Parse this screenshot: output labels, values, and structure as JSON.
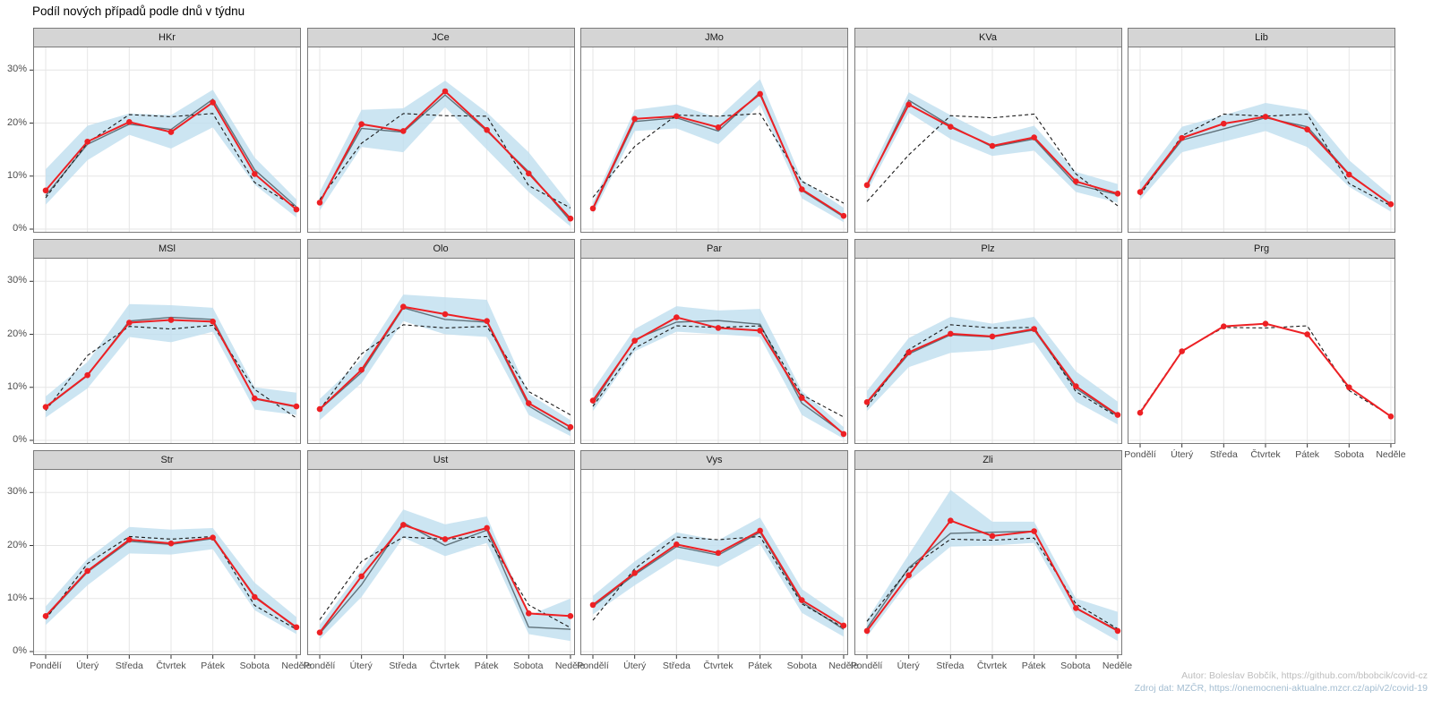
{
  "title": "Podíl nových případů podle dnů v týdnu",
  "footer": {
    "author": "Autor: Boleslav Bobčík, https://github.com/bbobcik/covid-cz",
    "source": "Zdroj dat: MZČR, https://onemocneni-aktualne.mzcr.cz/api/v2/covid-19"
  },
  "colors": {
    "red": "#ed2024",
    "ribbon": "#bfdfef",
    "mean_line": "#60727b",
    "dashed": "#1a1a1a",
    "grid": "#e6e6e6",
    "tick": "#333333",
    "axis_text": "#4d4d4d"
  },
  "chart_data": {
    "type": "line",
    "title": "Podíl nových případů podle dnů v týdnu",
    "categories": [
      "Pondělí",
      "Úterý",
      "Středa",
      "Čtvrtek",
      "Pátek",
      "Sobota",
      "Neděle"
    ],
    "ylabel": "",
    "xlabel": "",
    "ylim": [
      0,
      33
    ],
    "y_ticks_percent": [
      0,
      10,
      20,
      30
    ],
    "y_tick_labels": [
      "0%",
      "10%",
      "20%",
      "30%"
    ],
    "grid": true,
    "legend": "none",
    "series_description": {
      "red": "aktuální podíl (červená linie s body)",
      "dashed": "referenční podíl (černá čárkovaná)",
      "mean": "očekávaný podíl (šedá linie)",
      "ribbon_low_high": "pás nejistoty (světle modrý)"
    },
    "panels": [
      {
        "name": "HKr",
        "red": [
          7.3,
          16.5,
          20.2,
          18.3,
          23.9,
          10.4,
          3.7
        ],
        "mean": [
          6.3,
          16.0,
          19.8,
          18.8,
          24.5,
          11.2,
          4.2
        ],
        "dashed": [
          5.9,
          16.3,
          21.6,
          21.2,
          21.8,
          8.8,
          4.1
        ],
        "ribbon_low": [
          4.6,
          13.0,
          17.8,
          15.2,
          19.2,
          8.4,
          2.2
        ],
        "ribbon_high": [
          11.3,
          19.5,
          21.8,
          21.5,
          26.3,
          13.5,
          5.6
        ]
      },
      {
        "name": "JCe",
        "red": [
          5.0,
          19.8,
          18.5,
          26.0,
          18.7,
          10.5,
          2.0
        ],
        "mean": [
          5.2,
          19.0,
          18.3,
          25.3,
          18.5,
          10.8,
          1.5
        ],
        "dashed": [
          5.6,
          16.2,
          21.8,
          21.4,
          21.3,
          8.2,
          4.0
        ],
        "ribbon_low": [
          3.5,
          15.5,
          14.5,
          23.0,
          15.0,
          7.0,
          0.5
        ],
        "ribbon_high": [
          7.0,
          22.5,
          22.8,
          28.0,
          22.0,
          14.5,
          4.5
        ]
      },
      {
        "name": "JMo",
        "red": [
          3.9,
          20.8,
          21.3,
          19.2,
          25.5,
          7.5,
          2.5
        ],
        "mean": [
          3.7,
          20.3,
          21.0,
          18.5,
          25.8,
          7.3,
          2.3
        ],
        "dashed": [
          6.0,
          15.6,
          21.5,
          21.3,
          21.8,
          9.0,
          4.9
        ],
        "ribbon_low": [
          2.8,
          18.5,
          19.0,
          16.0,
          23.5,
          5.8,
          1.3
        ],
        "ribbon_high": [
          5.0,
          22.5,
          23.5,
          21.0,
          28.3,
          9.3,
          4.0
        ]
      },
      {
        "name": "KVa",
        "red": [
          8.3,
          23.5,
          19.3,
          15.7,
          17.3,
          9.0,
          6.7
        ],
        "mean": [
          8.0,
          24.3,
          19.5,
          15.5,
          17.0,
          8.4,
          6.5
        ],
        "dashed": [
          5.2,
          14.0,
          21.4,
          21.0,
          21.7,
          10.4,
          4.4
        ],
        "ribbon_low": [
          7.0,
          22.0,
          17.0,
          13.8,
          14.8,
          7.0,
          5.0
        ],
        "ribbon_high": [
          9.5,
          25.8,
          21.5,
          17.5,
          19.5,
          10.8,
          8.5
        ]
      },
      {
        "name": "Lib",
        "red": [
          7.0,
          17.2,
          19.9,
          21.2,
          18.8,
          10.3,
          4.7
        ],
        "mean": [
          6.8,
          16.8,
          18.9,
          21.0,
          19.3,
          10.4,
          4.6
        ],
        "dashed": [
          6.4,
          17.6,
          21.7,
          21.3,
          21.7,
          8.6,
          4.4
        ],
        "ribbon_low": [
          5.5,
          14.5,
          16.5,
          18.5,
          15.5,
          8.0,
          3.3
        ],
        "ribbon_high": [
          8.8,
          19.3,
          21.5,
          23.8,
          22.5,
          13.0,
          6.3
        ]
      },
      {
        "name": "MSl",
        "red": [
          6.3,
          12.3,
          22.2,
          22.7,
          22.4,
          7.9,
          6.4
        ],
        "mean": [
          6.2,
          12.2,
          22.5,
          23.2,
          22.8,
          7.8,
          6.3
        ],
        "dashed": [
          5.6,
          16.0,
          21.5,
          21.0,
          21.7,
          9.6,
          4.2
        ],
        "ribbon_low": [
          4.3,
          9.8,
          19.5,
          18.5,
          20.5,
          5.8,
          4.8
        ],
        "ribbon_high": [
          8.3,
          14.8,
          25.7,
          25.5,
          25.0,
          10.0,
          9.0
        ]
      },
      {
        "name": "Olo",
        "red": [
          5.9,
          13.3,
          25.2,
          23.8,
          22.5,
          7.0,
          2.5
        ],
        "mean": [
          5.8,
          12.8,
          25.0,
          22.8,
          22.3,
          6.5,
          1.8
        ],
        "dashed": [
          5.8,
          16.3,
          21.8,
          21.2,
          21.5,
          9.2,
          4.8
        ],
        "ribbon_low": [
          3.8,
          10.8,
          22.5,
          20.0,
          19.5,
          4.8,
          0.8
        ],
        "ribbon_high": [
          7.8,
          15.3,
          27.5,
          27.0,
          26.5,
          8.8,
          3.8
        ]
      },
      {
        "name": "Par",
        "red": [
          7.5,
          18.8,
          23.2,
          21.2,
          20.7,
          8.0,
          1.2
        ],
        "mean": [
          6.9,
          19.0,
          22.3,
          22.6,
          21.9,
          7.0,
          1.3
        ],
        "dashed": [
          6.4,
          17.4,
          21.6,
          21.3,
          21.6,
          8.6,
          4.4
        ],
        "ribbon_low": [
          5.5,
          16.8,
          20.5,
          20.0,
          19.5,
          4.8,
          0.3
        ],
        "ribbon_high": [
          9.5,
          21.0,
          25.3,
          24.5,
          24.8,
          9.3,
          2.5
        ]
      },
      {
        "name": "Plz",
        "red": [
          7.2,
          16.6,
          20.1,
          19.6,
          21.0,
          10.2,
          4.8
        ],
        "mean": [
          7.0,
          16.3,
          19.9,
          19.5,
          20.8,
          9.8,
          4.6
        ],
        "dashed": [
          6.3,
          17.1,
          21.8,
          21.2,
          21.3,
          9.2,
          4.4
        ],
        "ribbon_low": [
          5.5,
          13.8,
          16.5,
          17.0,
          18.5,
          7.3,
          3.0
        ],
        "ribbon_high": [
          9.3,
          19.3,
          23.3,
          22.0,
          23.3,
          13.0,
          7.3
        ]
      },
      {
        "name": "Prg",
        "red": [
          5.2,
          16.8,
          21.5,
          22.0,
          20.0,
          10.0,
          4.5
        ],
        "dashed": [
          5.4,
          16.9,
          21.3,
          21.2,
          21.6,
          9.4,
          4.6
        ]
      },
      {
        "name": "Str",
        "red": [
          6.7,
          15.2,
          21.1,
          20.4,
          21.5,
          10.3,
          4.6
        ],
        "mean": [
          6.5,
          15.0,
          20.8,
          20.2,
          21.3,
          10.5,
          4.4
        ],
        "dashed": [
          6.1,
          16.6,
          21.7,
          21.2,
          21.7,
          8.7,
          4.2
        ],
        "ribbon_low": [
          5.0,
          12.5,
          18.5,
          18.3,
          19.3,
          7.8,
          3.3
        ],
        "ribbon_high": [
          8.5,
          17.5,
          23.5,
          23.0,
          23.3,
          13.0,
          6.5
        ]
      },
      {
        "name": "Ust",
        "red": [
          3.6,
          14.2,
          23.9,
          21.2,
          23.3,
          7.2,
          6.7
        ],
        "mean": [
          3.4,
          12.6,
          24.3,
          20.0,
          22.9,
          4.6,
          4.2
        ],
        "dashed": [
          6.0,
          17.0,
          21.6,
          21.2,
          21.7,
          8.8,
          4.5
        ],
        "ribbon_low": [
          2.3,
          10.3,
          21.5,
          18.0,
          20.5,
          3.3,
          2.0
        ],
        "ribbon_high": [
          5.0,
          15.5,
          26.8,
          24.0,
          25.5,
          6.8,
          10.0
        ]
      },
      {
        "name": "Vys",
        "red": [
          8.8,
          14.8,
          20.2,
          18.6,
          22.8,
          9.7,
          4.9
        ],
        "mean": [
          8.5,
          14.5,
          19.8,
          18.2,
          22.5,
          9.3,
          4.2
        ],
        "dashed": [
          5.9,
          15.6,
          21.6,
          21.1,
          21.7,
          9.0,
          4.5
        ],
        "ribbon_low": [
          7.0,
          12.5,
          17.5,
          16.0,
          20.3,
          7.3,
          2.8
        ],
        "ribbon_high": [
          10.5,
          17.0,
          22.5,
          21.0,
          25.3,
          11.8,
          6.3
        ]
      },
      {
        "name": "Zli",
        "red": [
          3.9,
          14.4,
          24.7,
          21.8,
          22.7,
          8.2,
          3.9
        ],
        "mean": [
          4.4,
          15.8,
          22.3,
          22.5,
          22.7,
          8.1,
          4.1
        ],
        "dashed": [
          5.7,
          15.6,
          21.2,
          21.0,
          21.4,
          9.0,
          4.3
        ],
        "ribbon_low": [
          2.8,
          13.3,
          19.8,
          20.0,
          20.5,
          6.5,
          2.0
        ],
        "ribbon_high": [
          6.0,
          18.3,
          30.5,
          24.5,
          24.5,
          10.0,
          7.5
        ]
      }
    ]
  }
}
